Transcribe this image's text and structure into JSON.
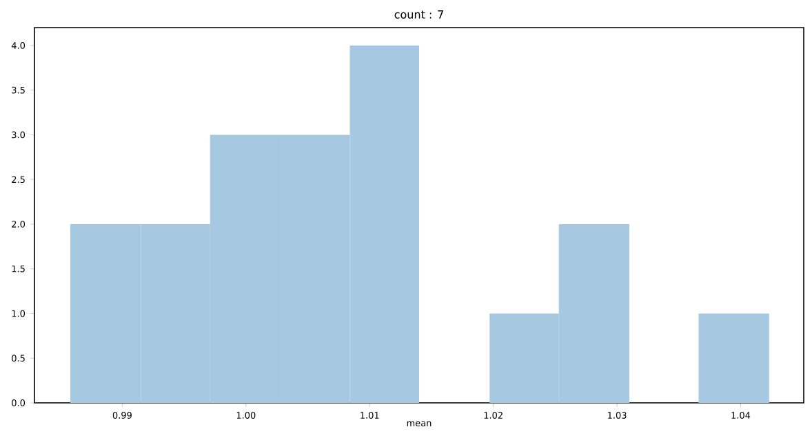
{
  "chart_data": {
    "type": "histogram",
    "title": "count : 7",
    "xlabel": "mean",
    "bins": [
      0.9858,
      0.9915,
      0.9971,
      1.0028,
      1.0084,
      1.014,
      1.0197,
      1.0253,
      1.031,
      1.0366,
      1.0423
    ],
    "values": [
      2,
      2,
      3,
      3,
      4,
      0,
      1,
      2,
      0,
      1
    ],
    "color": "#a6c8e0",
    "xlim": [
      0.9829,
      1.0451
    ],
    "ylim": [
      0,
      4.2
    ],
    "xticks": [
      0.99,
      {
        "value": 1,
        "label": "1.00"
      },
      1.01,
      1.02,
      1.03,
      1.04
    ],
    "yticks": [
      {
        "value": 0,
        "label": "0.0"
      },
      {
        "value": 0.5,
        "label": "0.5"
      },
      {
        "value": 1,
        "label": "1.0"
      },
      {
        "value": 1.5,
        "label": "1.5"
      },
      {
        "value": 2,
        "label": "2.0"
      },
      {
        "value": 2.5,
        "label": "2.5"
      },
      {
        "value": 3,
        "label": "3.0"
      },
      {
        "value": 3.5,
        "label": "3.5"
      },
      {
        "value": 4,
        "label": "4.0"
      }
    ],
    "grid": false
  }
}
